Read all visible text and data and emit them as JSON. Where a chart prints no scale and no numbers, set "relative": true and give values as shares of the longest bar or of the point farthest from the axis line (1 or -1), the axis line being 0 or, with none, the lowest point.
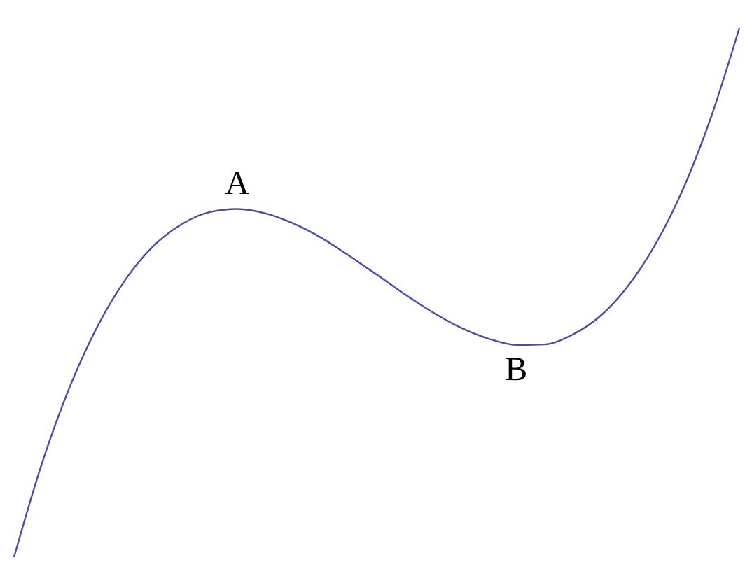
{
  "chart_data": {
    "type": "line",
    "relative": true,
    "categories": [
      null,
      null,
      null,
      null,
      null,
      null,
      null,
      null,
      null,
      null,
      null,
      null,
      null,
      null,
      null,
      null,
      null,
      null,
      null,
      null,
      null,
      null,
      null,
      null,
      null,
      null,
      null
    ],
    "series": [
      {
        "color": "#4b4ba8",
        "values": [
          0,
          0.177,
          0.322,
          0.437,
          0.525,
          0.588,
          0.629,
          0.652,
          0.658,
          0.65,
          0.631,
          0.604,
          0.57,
          0.534,
          0.497,
          0.463,
          0.434,
          0.413,
          0.401,
          0.402,
          0.42,
          0.455,
          0.512,
          0.592,
          0.698,
          0.834,
          1.0
        ]
      }
    ],
    "annotations": [
      {
        "text": "A",
        "y": 0.658
      },
      {
        "text": "B",
        "y": 0.401
      }
    ],
    "grid": false,
    "legend": false,
    "marker": "none",
    "line_style": "solid"
  }
}
